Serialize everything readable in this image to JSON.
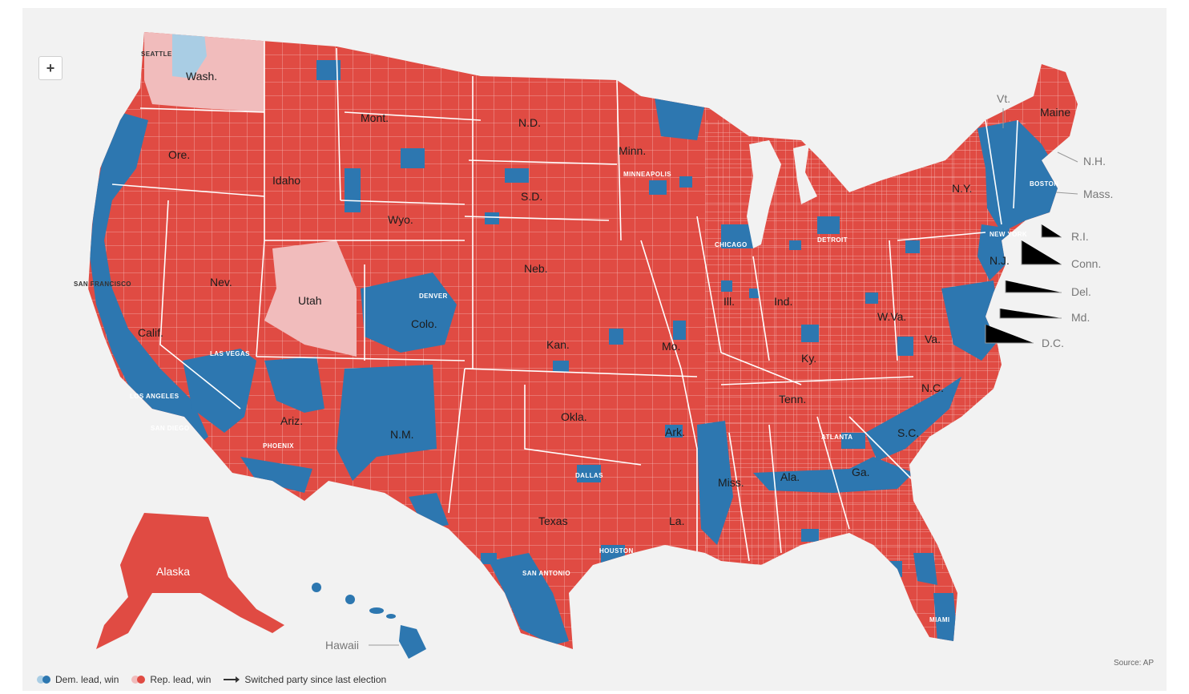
{
  "map": {
    "colors": {
      "dem": "#2d77b0",
      "dem_light": "#a9cde4",
      "rep": "#e04b43",
      "rep_light": "#f1bcbc",
      "border": "#ffffff"
    },
    "states": [
      "Wash.",
      "Ore.",
      "Mont.",
      "Idaho",
      "Wyo.",
      "Nev.",
      "Utah",
      "Calif.",
      "Colo.",
      "Ariz.",
      "N.M.",
      "N.D.",
      "S.D.",
      "Neb.",
      "Kan.",
      "Okla.",
      "Texas",
      "Minn.",
      "Mo.",
      "Ark.",
      "La.",
      "Ill.",
      "Ind.",
      "Ky.",
      "Tenn.",
      "Miss.",
      "Ala.",
      "Ga.",
      "S.C.",
      "N.C.",
      "Va.",
      "W.Va.",
      "N.Y.",
      "Maine",
      "Alaska"
    ],
    "cities": [
      "SEATTLE",
      "MINNEAPOLIS",
      "DETROIT",
      "CHICAGO",
      "BOSTON",
      "NEW YORK",
      "SAN FRANCISCO",
      "DENVER",
      "LAS VEGAS",
      "LOS ANGELES",
      "SAN DIEGO",
      "PHOENIX",
      "DALLAS",
      "HOUSTON",
      "SAN ANTONIO",
      "ATLANTA",
      "MIAMI"
    ],
    "callouts": [
      "Vt.",
      "N.H.",
      "Mass.",
      "R.I.",
      "Conn.",
      "N.J.",
      "Del.",
      "Md.",
      "D.C.",
      "Hawaii"
    ]
  },
  "zoom": {
    "label": "+"
  },
  "legend": {
    "dem_label": "Dem. lead, win",
    "rep_label": "Rep. lead, win",
    "switch_label": "Switched party since last election"
  },
  "source": "Source: AP"
}
